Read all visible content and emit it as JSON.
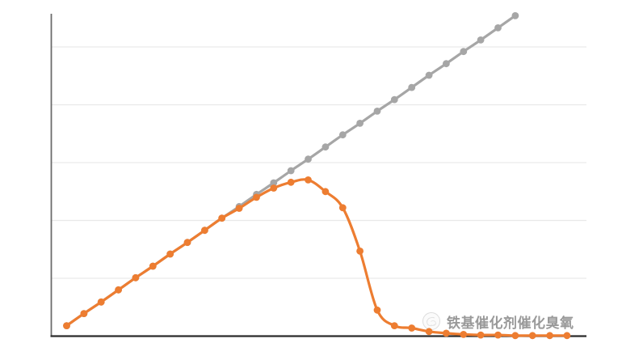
{
  "watermark": {
    "text": "铁基催化剂催化臭氧",
    "logo_icon": "official-account-logo-icon"
  },
  "colors": {
    "series_gray": "#A6A6A6",
    "series_orange": "#ED7D31",
    "gridline": "#E9E9E9",
    "y_axis": "#6B6B6B",
    "x_axis": "#2B2B2B",
    "background": "#FFFFFF",
    "watermark_text": "#8F8F8F"
  },
  "chart_data": {
    "type": "line",
    "title": "",
    "xlabel": "",
    "ylabel": "",
    "legend": "none",
    "axis_tick_labels": "none",
    "grid": "horizontal-only",
    "gridline_values": [
      1,
      2,
      3,
      4,
      5
    ],
    "ylim": [
      0,
      5.55
    ],
    "x": [
      1,
      2,
      3,
      4,
      5,
      6,
      7,
      8,
      9,
      10,
      11,
      12,
      13,
      14,
      15,
      16,
      17,
      18,
      19,
      20,
      21,
      22,
      23,
      24,
      25,
      26,
      27,
      28,
      29,
      30
    ],
    "marker_style": "filled-circle",
    "series": [
      {
        "name": "gray-linear-rising-series",
        "color": "#A6A6A6",
        "values": [
          0.18,
          0.39,
          0.59,
          0.8,
          1.01,
          1.21,
          1.42,
          1.62,
          1.83,
          2.04,
          2.24,
          2.45,
          2.65,
          2.86,
          3.06,
          3.27,
          3.48,
          3.68,
          3.89,
          4.09,
          4.3,
          4.51,
          4.71,
          4.92,
          5.12,
          5.33,
          5.54
        ]
      },
      {
        "name": "orange-peak-then-decay-series",
        "color": "#ED7D31",
        "values": [
          0.18,
          0.39,
          0.59,
          0.8,
          1.01,
          1.21,
          1.42,
          1.62,
          1.83,
          2.04,
          2.21,
          2.4,
          2.56,
          2.66,
          2.7,
          2.5,
          2.22,
          1.47,
          0.45,
          0.18,
          0.14,
          0.08,
          0.05,
          0.03,
          0.02,
          0.02,
          0.01,
          0.01,
          0.01,
          0.01
        ]
      }
    ]
  }
}
